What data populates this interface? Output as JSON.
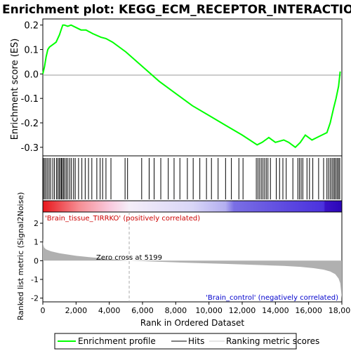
{
  "chart_data": {
    "type": "line",
    "title": "Enrichment plot: KEGG_ECM_RECEPTOR_INTERACTION",
    "es_panel": {
      "ylabel": "Enrichment score (ES)",
      "yticks": [
        0.2,
        0.1,
        0.0,
        -0.1,
        -0.2,
        -0.3
      ],
      "ylim": [
        -0.335,
        0.225
      ],
      "series": [
        {
          "name": "Enrichment profile",
          "color": "#00ff00",
          "x": [
            0,
            100,
            200,
            300,
            400,
            600,
            800,
            1000,
            1100,
            1200,
            1300,
            1500,
            1700,
            2000,
            2300,
            2600,
            3000,
            3500,
            3800,
            4200,
            5000,
            6000,
            7000,
            8000,
            9000,
            10000,
            11000,
            12000,
            12900,
            13200,
            13600,
            14000,
            14500,
            14800,
            15200,
            15500,
            15800,
            16200,
            16500,
            16800,
            17100,
            17300,
            17500,
            17650,
            17800,
            17900
          ],
          "y": [
            0.0,
            0.03,
            0.07,
            0.1,
            0.11,
            0.12,
            0.13,
            0.16,
            0.18,
            0.2,
            0.2,
            0.195,
            0.2,
            0.19,
            0.18,
            0.18,
            0.165,
            0.15,
            0.145,
            0.13,
            0.09,
            0.03,
            -0.03,
            -0.08,
            -0.13,
            -0.17,
            -0.21,
            -0.25,
            -0.29,
            -0.28,
            -0.26,
            -0.28,
            -0.27,
            -0.28,
            -0.3,
            -0.28,
            -0.25,
            -0.27,
            -0.26,
            -0.25,
            -0.24,
            -0.2,
            -0.14,
            -0.1,
            -0.05,
            0.01
          ]
        }
      ]
    },
    "hits_panel": {
      "series_name": "Hits",
      "color": "#000000",
      "positions": [
        40,
        120,
        200,
        290,
        380,
        470,
        600,
        700,
        820,
        900,
        980,
        1050,
        1120,
        1180,
        1250,
        1330,
        1420,
        1510,
        1620,
        1720,
        1850,
        1950,
        2150,
        2350,
        2550,
        2750,
        2950,
        3250,
        3450,
        3600,
        3800,
        4100,
        4950,
        5100,
        5950,
        6400,
        6700,
        7100,
        7550,
        7900,
        8250,
        8700,
        9050,
        9450,
        9850,
        10150,
        10550,
        11000,
        11350,
        11800,
        12050,
        12850,
        12950,
        13050,
        13150,
        13250,
        13350,
        13450,
        13550,
        13700,
        14050,
        14250,
        14450,
        14650,
        15050,
        15350,
        15450,
        15550,
        15650,
        15900,
        16050,
        16250,
        16600,
        16900,
        17100,
        17200,
        17300,
        17400,
        17480,
        17560,
        17640,
        17720,
        17800,
        17870
      ]
    },
    "gradient_bar": {
      "stops": [
        {
          "rank": 0,
          "color": "#e8171c"
        },
        {
          "rank": 2200,
          "color": "#f68e94"
        },
        {
          "rank": 4000,
          "color": "#f9c8dc"
        },
        {
          "rank": 5200,
          "color": "#f5eef8"
        },
        {
          "rank": 9000,
          "color": "#d9d6f7"
        },
        {
          "rank": 11000,
          "color": "#b3aef0"
        },
        {
          "rank": 11500,
          "color": "#7a6fe4"
        },
        {
          "rank": 15000,
          "color": "#5a45e0"
        },
        {
          "rank": 16900,
          "color": "#4b32dd"
        },
        {
          "rank": 17000,
          "color": "#3a12c6"
        },
        {
          "rank": 18000,
          "color": "#2b06b8"
        }
      ]
    },
    "metric_panel": {
      "ylabel": "Ranked list metric (Signal2Noise)",
      "yticks": [
        2,
        1,
        0,
        -1,
        -2
      ],
      "ylim": [
        -2.2,
        2.6
      ],
      "series_name": "Ranking metric scores",
      "color": "#b0b0b0",
      "x": [
        0,
        10,
        30,
        80,
        200,
        500,
        1000,
        2000,
        3000,
        4000,
        5199,
        7000,
        9000,
        11000,
        13000,
        14500,
        15500,
        16300,
        16900,
        17300,
        17600,
        17800,
        17900,
        17950,
        18000
      ],
      "y": [
        1.2,
        1.0,
        0.85,
        0.7,
        0.6,
        0.5,
        0.4,
        0.26,
        0.17,
        0.09,
        0.0,
        -0.06,
        -0.12,
        -0.17,
        -0.23,
        -0.28,
        -0.33,
        -0.4,
        -0.48,
        -0.58,
        -0.72,
        -0.95,
        -1.2,
        -1.6,
        -2.0
      ],
      "zero_cross_label": "Zero cross at 5199",
      "zero_cross": 5199,
      "pos_label": "'Brain_tissue_TIRRKO' (positively correlated)",
      "neg_label": "'Brain_control' (negatively correlated)",
      "pos_color": "#cc0000",
      "neg_color": "#0000cc"
    },
    "xaxis": {
      "xlabel": "Rank in Ordered Dataset",
      "xlim": [
        0,
        18000
      ],
      "xticks": [
        0,
        2000,
        4000,
        6000,
        8000,
        10000,
        12000,
        14000,
        16000,
        18000
      ],
      "xtick_labels": [
        "0",
        "2,000",
        "4,000",
        "6,000",
        "8,000",
        "10,000",
        "12,000",
        "14,000",
        "16,000",
        "18,000"
      ]
    },
    "legend": {
      "placement": "bottom",
      "items": [
        "Enrichment profile",
        "Hits",
        "Ranking metric scores"
      ]
    }
  }
}
